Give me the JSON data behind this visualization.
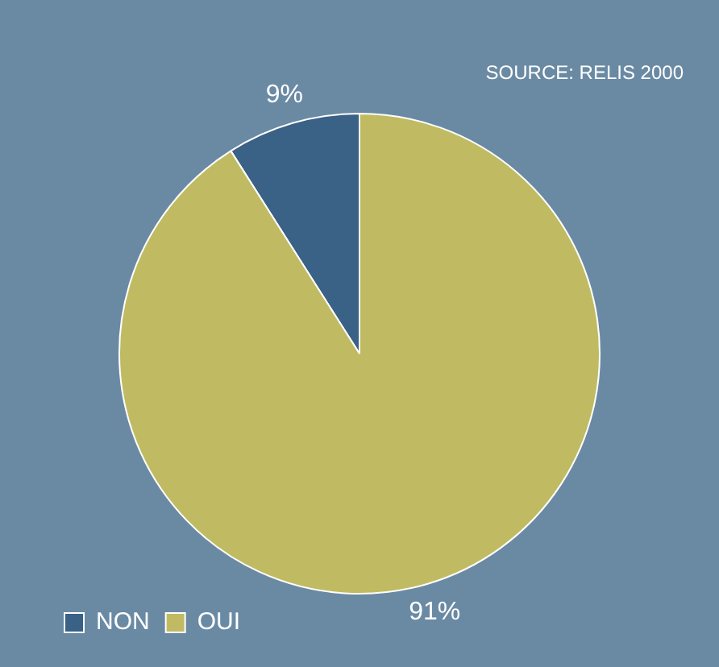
{
  "chart_data": {
    "type": "pie",
    "categories": [
      "NON",
      "OUI"
    ],
    "values": [
      9,
      91
    ],
    "colors": [
      "#3a6186",
      "#c0bb62"
    ],
    "value_labels": [
      "9%",
      "91%"
    ],
    "legend": "bottom left",
    "annotations": [
      "SOURCE: RELIS 2000"
    ]
  }
}
